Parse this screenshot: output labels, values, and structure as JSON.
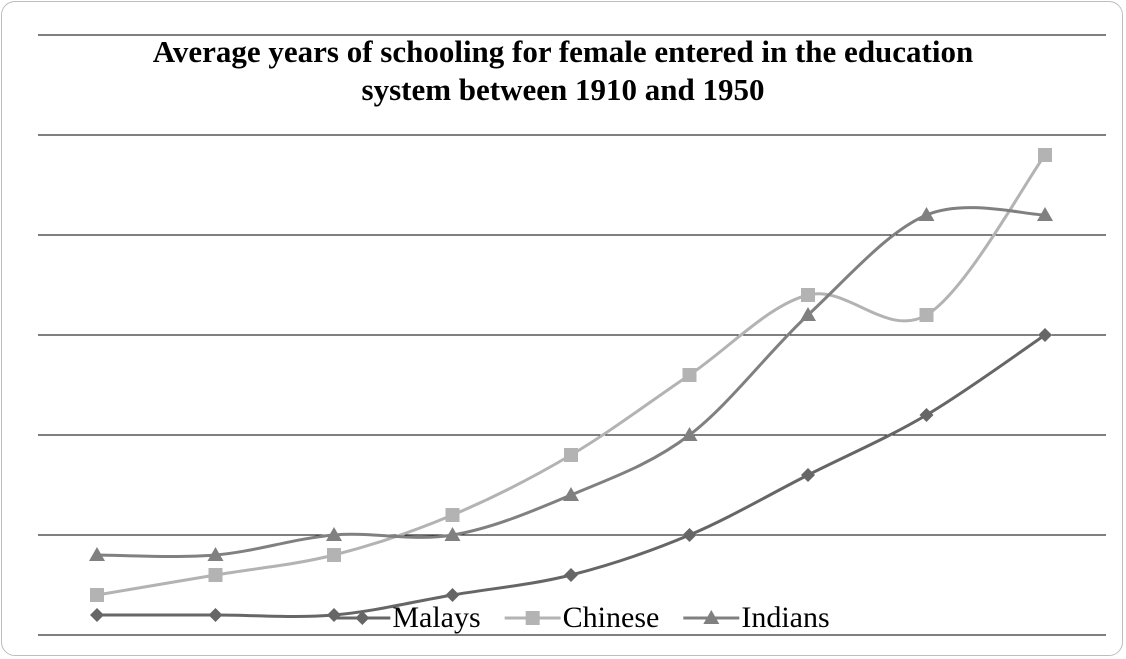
{
  "chart_data": {
    "type": "line",
    "title": "Average years of schooling for female entered in the education system between 1910 and 1950",
    "categories": [
      null,
      null,
      null,
      null,
      null,
      null,
      null,
      null,
      null
    ],
    "series": [
      {
        "name": "Malays",
        "color": "#666666",
        "marker": "diamond",
        "values": [
          0.2,
          0.2,
          0.2,
          0.4,
          0.6,
          1.0,
          1.6,
          2.2,
          3.0
        ]
      },
      {
        "name": "Chinese",
        "color": "#b3b3b3",
        "marker": "square",
        "values": [
          0.4,
          0.6,
          0.8,
          1.2,
          1.8,
          2.6,
          3.4,
          3.2,
          4.8
        ]
      },
      {
        "name": "Indians",
        "color": "#808080",
        "marker": "triangle",
        "values": [
          0.8,
          0.8,
          1.0,
          1.0,
          1.4,
          2.0,
          3.2,
          4.2,
          4.2
        ]
      }
    ],
    "ylim": [
      0,
      6
    ],
    "yticks": [
      0,
      1,
      2,
      3,
      4,
      5,
      6
    ],
    "grid": true,
    "smooth": true,
    "legend": "bottom"
  }
}
